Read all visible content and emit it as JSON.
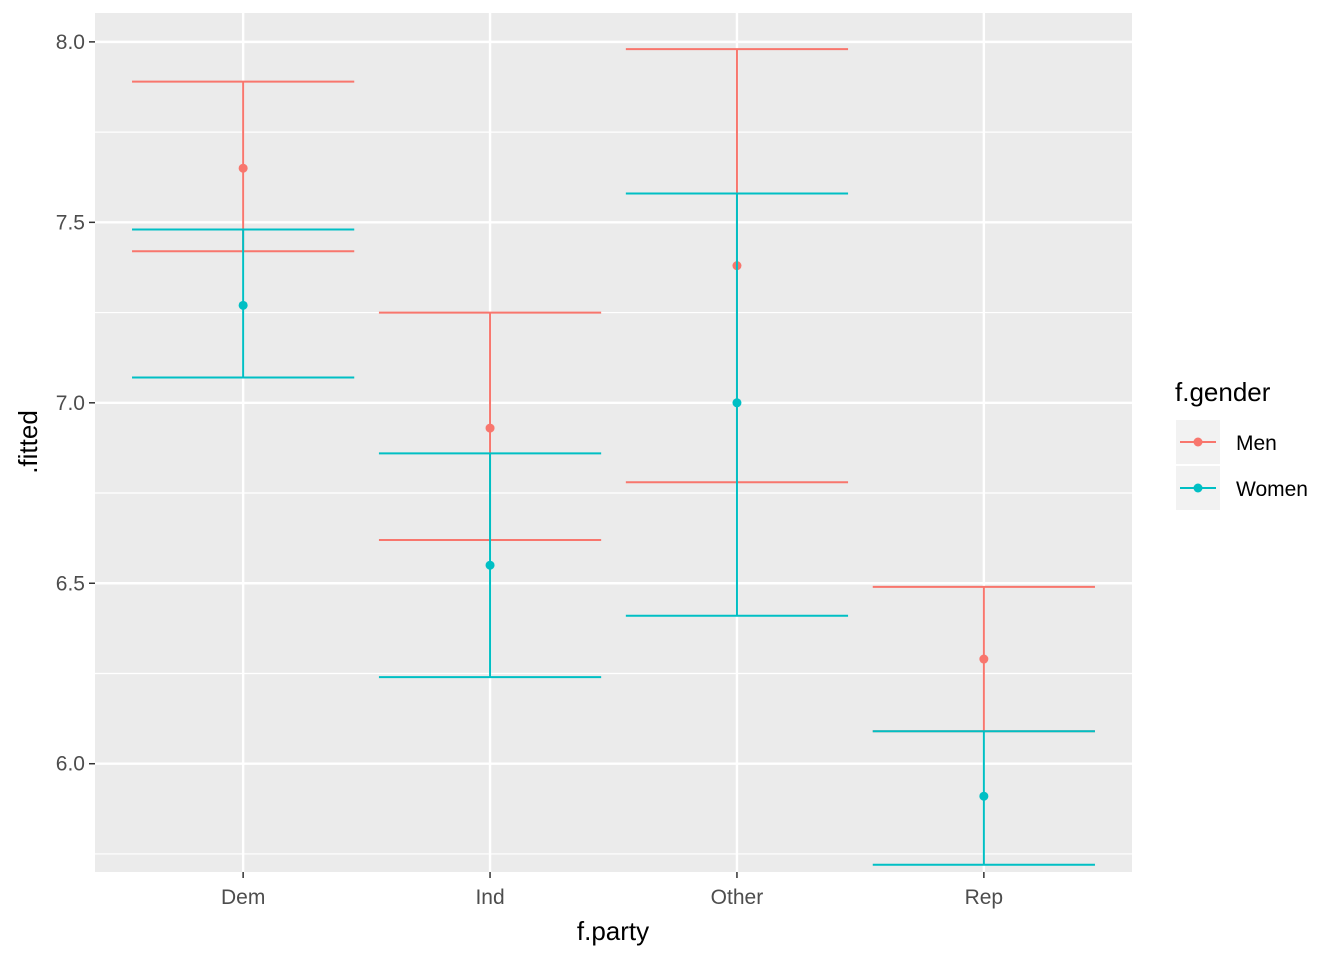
{
  "chart_data": {
    "type": "errorbar",
    "title": "",
    "xlabel": "f.party",
    "ylabel": ".fitted",
    "categories": [
      "Dem",
      "Ind",
      "Other",
      "Rep"
    ],
    "ylim": [
      5.7,
      8.08
    ],
    "yticks": [
      "6.0",
      "6.5",
      "7.0",
      "7.5",
      "8.0"
    ],
    "grid": true,
    "legend": {
      "title": "f.gender",
      "placement": "right"
    },
    "series": [
      {
        "name": "Men",
        "color": "#F8766D",
        "values": [
          7.65,
          6.93,
          7.38,
          6.29
        ],
        "lower": [
          7.42,
          6.62,
          6.78,
          6.09
        ],
        "upper": [
          7.89,
          7.25,
          7.98,
          6.49
        ]
      },
      {
        "name": "Women",
        "color": "#00BFC4",
        "values": [
          7.27,
          6.55,
          7.0,
          5.91
        ],
        "lower": [
          7.07,
          6.24,
          6.41,
          5.72
        ],
        "upper": [
          7.48,
          6.86,
          7.58,
          6.09
        ]
      }
    ]
  }
}
